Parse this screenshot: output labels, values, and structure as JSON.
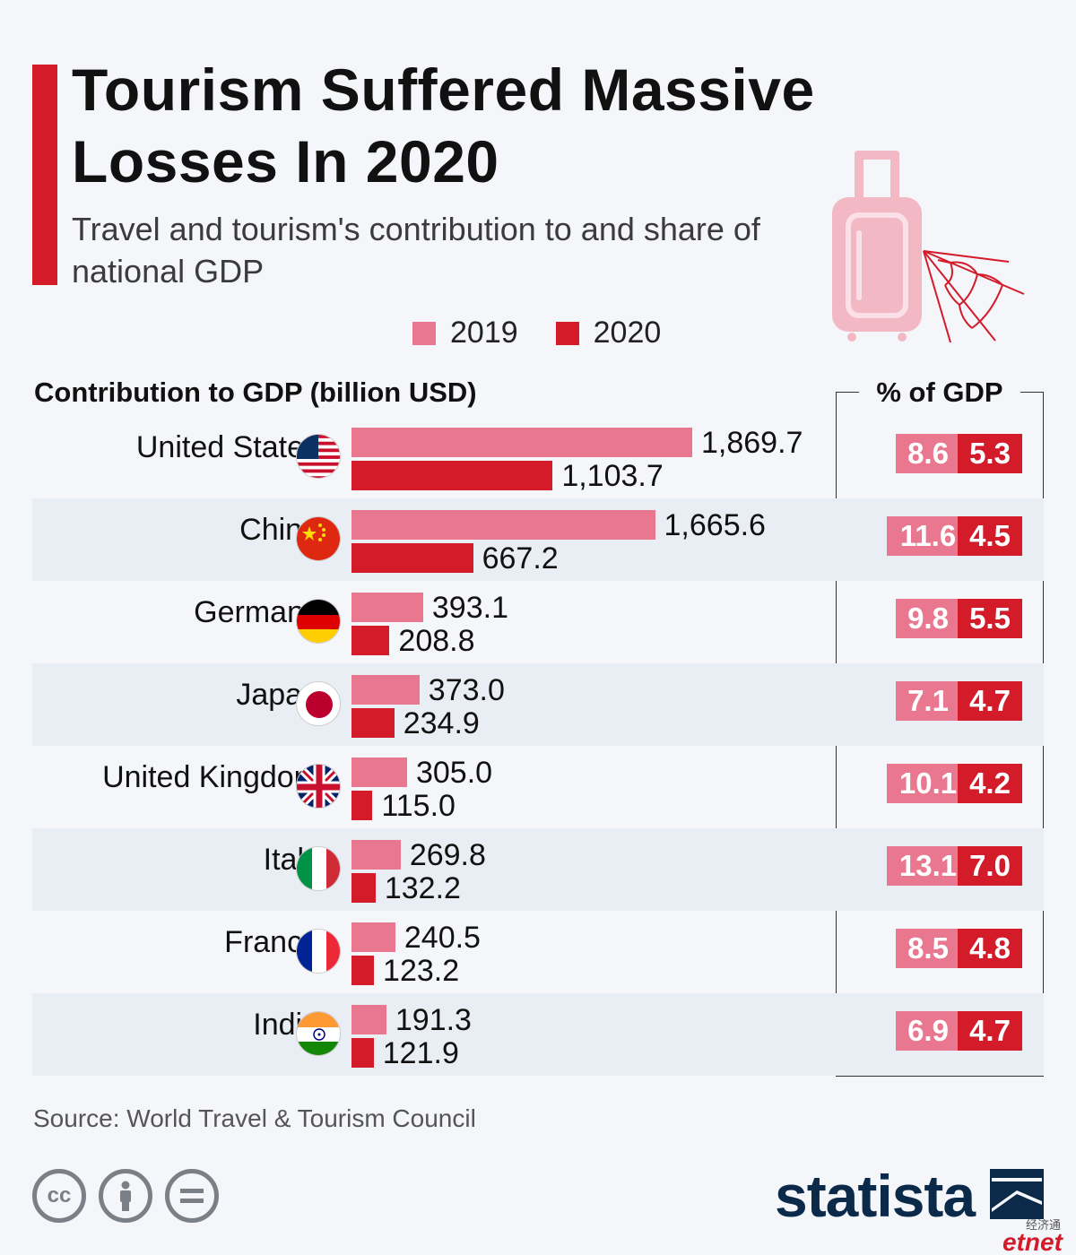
{
  "header": {
    "title": "Tourism Suffered Massive Losses In 2020",
    "subtitle": "Travel and tourism's contribution to and share of national GDP"
  },
  "legend": {
    "items": [
      {
        "label": "2019",
        "color": "#e97790"
      },
      {
        "label": "2020",
        "color": "#d31b2a"
      }
    ]
  },
  "chart_data": {
    "type": "bar",
    "orientation": "horizontal",
    "section_label": "Contribution to GDP (billion USD)",
    "pct_header": "% of GDP",
    "categories": [
      "United States",
      "China",
      "Germany",
      "Japan",
      "United Kingdom",
      "Italy",
      "France",
      "India"
    ],
    "series": [
      {
        "name": "2019",
        "color": "#e97790",
        "values": [
          1869.7,
          1665.6,
          393.1,
          373.0,
          305.0,
          269.8,
          240.5,
          191.3
        ],
        "labels": [
          "1,869.7",
          "1,665.6",
          "393.1",
          "373.0",
          "305.0",
          "269.8",
          "240.5",
          "191.3"
        ],
        "pct_gdp": [
          "8.6",
          "11.6",
          "9.8",
          "7.1",
          "10.1",
          "13.1",
          "8.5",
          "6.9"
        ]
      },
      {
        "name": "2020",
        "color": "#d31b2a",
        "values": [
          1103.7,
          667.2,
          208.8,
          234.9,
          115.0,
          132.2,
          123.2,
          121.9
        ],
        "labels": [
          "1,103.7",
          "667.2",
          "208.8",
          "234.9",
          "115.0",
          "132.2",
          "123.2",
          "121.9"
        ],
        "pct_gdp": [
          "5.3",
          "4.5",
          "5.5",
          "4.7",
          "4.2",
          "7.0",
          "4.8",
          "4.7"
        ]
      }
    ],
    "xlim": [
      0,
      1869.7
    ],
    "grid": false,
    "legend_position": "top"
  },
  "footer": {
    "source": "Source: World Travel & Tourism Council",
    "brand": "statista",
    "watermark_cn": "经济通",
    "watermark": "etnet",
    "cc_icons": [
      "cc-icon",
      "attribution-icon",
      "no-derivatives-icon"
    ]
  }
}
